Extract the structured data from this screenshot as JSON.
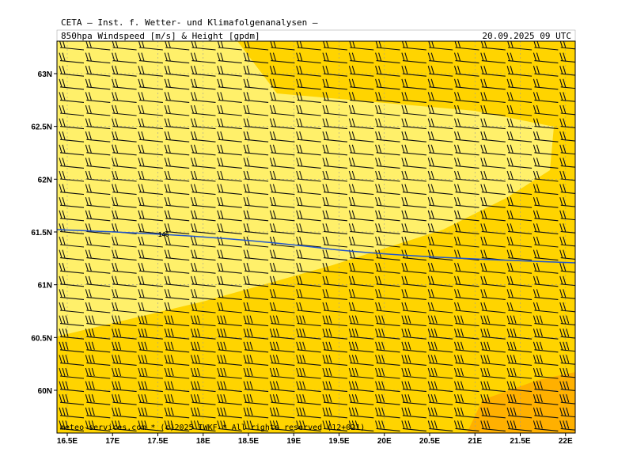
{
  "header": {
    "title": "CETA — Inst. f. Wetter- und Klimafolgenanalysen —",
    "product": "850hpa Windspeed [m/s] & Height [gpdm]",
    "valid_time": "20.09.2025 09 UTC"
  },
  "map": {
    "lat_ticks": [
      {
        "value": 63,
        "label": "63N"
      },
      {
        "value": 62.5,
        "label": "62.5N"
      },
      {
        "value": 62,
        "label": "62N"
      },
      {
        "value": 61.5,
        "label": "61.5N"
      },
      {
        "value": 61,
        "label": "61N"
      },
      {
        "value": 60.5,
        "label": "60.5N"
      },
      {
        "value": 60,
        "label": "60N"
      }
    ],
    "lon_ticks": [
      {
        "value": 16.5,
        "label": "16.5E"
      },
      {
        "value": 17,
        "label": "17E"
      },
      {
        "value": 17.5,
        "label": "17.5E"
      },
      {
        "value": 18,
        "label": "18E"
      },
      {
        "value": 18.5,
        "label": "18.5E"
      },
      {
        "value": 19,
        "label": "19E"
      },
      {
        "value": 19.5,
        "label": "19.5E"
      },
      {
        "value": 20,
        "label": "20E"
      },
      {
        "value": 20.5,
        "label": "20.5E"
      },
      {
        "value": 21,
        "label": "21E"
      },
      {
        "value": 21.5,
        "label": "21.5E"
      },
      {
        "value": 22,
        "label": "22E"
      }
    ],
    "contour_label": "146",
    "footer": "meteo-services.com * (c)2025 IWKF * All rights reserved (12+021)"
  }
}
